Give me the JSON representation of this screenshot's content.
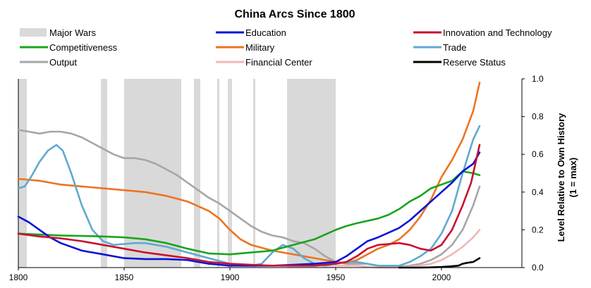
{
  "chart_data": {
    "type": "line",
    "title": "China Arcs Since 1800",
    "ylabel_line1": "Level Relative to Own History",
    "ylabel_line2": "(1 = max)",
    "xlim": [
      1800,
      2038
    ],
    "ylim": [
      0,
      1.0
    ],
    "x_ticks": [
      1800,
      1850,
      1900,
      1950,
      2000
    ],
    "y_ticks": [
      0.0,
      0.2,
      0.4,
      0.6,
      0.8,
      1.0
    ],
    "y_tick_labels": [
      "0.0",
      "0.2",
      "0.4",
      "0.6",
      "0.8",
      "1.0"
    ],
    "legend_placement": "top",
    "major_wars_label": "Major Wars",
    "major_wars_color": "#d9d9d9",
    "major_wars": [
      [
        1800,
        1804
      ],
      [
        1839,
        1842
      ],
      [
        1850,
        1877
      ],
      [
        1883,
        1886
      ],
      [
        1894,
        1895
      ],
      [
        1899,
        1901
      ],
      [
        1911,
        1912
      ],
      [
        1927,
        1950
      ]
    ],
    "series": [
      {
        "name": "Education",
        "color": "#0a14d6",
        "x": [
          1800,
          1805,
          1810,
          1815,
          1820,
          1830,
          1840,
          1850,
          1860,
          1870,
          1880,
          1890,
          1900,
          1910,
          1920,
          1930,
          1940,
          1950,
          1955,
          1960,
          1965,
          1970,
          1975,
          1980,
          1985,
          1990,
          1995,
          2000,
          2005,
          2010,
          2015,
          2018
        ],
        "y": [
          0.27,
          0.24,
          0.2,
          0.16,
          0.13,
          0.09,
          0.07,
          0.05,
          0.045,
          0.045,
          0.04,
          0.02,
          0.01,
          0.01,
          0.01,
          0.015,
          0.02,
          0.03,
          0.06,
          0.1,
          0.14,
          0.16,
          0.185,
          0.21,
          0.25,
          0.3,
          0.35,
          0.4,
          0.45,
          0.51,
          0.55,
          0.61
        ]
      },
      {
        "name": "Innovation and Technology",
        "color": "#c8102e",
        "x": [
          1800,
          1810,
          1820,
          1830,
          1840,
          1850,
          1860,
          1870,
          1880,
          1890,
          1900,
          1910,
          1920,
          1930,
          1940,
          1950,
          1955,
          1960,
          1965,
          1970,
          1975,
          1980,
          1985,
          1990,
          1995,
          2000,
          2005,
          2010,
          2014,
          2018
        ],
        "y": [
          0.18,
          0.165,
          0.155,
          0.14,
          0.12,
          0.1,
          0.08,
          0.065,
          0.05,
          0.03,
          0.02,
          0.015,
          0.01,
          0.01,
          0.01,
          0.02,
          0.03,
          0.06,
          0.1,
          0.12,
          0.125,
          0.13,
          0.12,
          0.1,
          0.09,
          0.12,
          0.2,
          0.33,
          0.45,
          0.65
        ]
      },
      {
        "name": "Competitiveness",
        "color": "#18a51c",
        "x": [
          1800,
          1810,
          1820,
          1830,
          1840,
          1850,
          1860,
          1870,
          1880,
          1890,
          1900,
          1910,
          1920,
          1930,
          1940,
          1950,
          1955,
          1960,
          1970,
          1975,
          1980,
          1985,
          1990,
          1995,
          2000,
          2005,
          2010,
          2015,
          2018
        ],
        "y": [
          0.18,
          0.175,
          0.17,
          0.168,
          0.165,
          0.16,
          0.15,
          0.13,
          0.1,
          0.075,
          0.07,
          0.08,
          0.09,
          0.12,
          0.15,
          0.2,
          0.22,
          0.235,
          0.26,
          0.28,
          0.31,
          0.35,
          0.38,
          0.42,
          0.44,
          0.46,
          0.51,
          0.5,
          0.49
        ]
      },
      {
        "name": "Military",
        "color": "#ec7423",
        "x": [
          1800,
          1810,
          1820,
          1830,
          1840,
          1850,
          1860,
          1870,
          1880,
          1890,
          1895,
          1900,
          1905,
          1910,
          1920,
          1930,
          1940,
          1950,
          1955,
          1960,
          1965,
          1970,
          1975,
          1980,
          1985,
          1990,
          1995,
          2000,
          2005,
          2010,
          2015,
          2018
        ],
        "y": [
          0.47,
          0.46,
          0.44,
          0.43,
          0.42,
          0.41,
          0.4,
          0.38,
          0.35,
          0.3,
          0.26,
          0.2,
          0.15,
          0.12,
          0.09,
          0.07,
          0.05,
          0.03,
          0.025,
          0.04,
          0.07,
          0.1,
          0.12,
          0.15,
          0.2,
          0.27,
          0.36,
          0.48,
          0.57,
          0.68,
          0.83,
          0.98
        ]
      },
      {
        "name": "Trade",
        "color": "#5fa9d0",
        "x": [
          1800,
          1803,
          1806,
          1810,
          1814,
          1818,
          1821,
          1825,
          1830,
          1835,
          1840,
          1845,
          1850,
          1855,
          1860,
          1870,
          1880,
          1890,
          1900,
          1905,
          1910,
          1915,
          1920,
          1925,
          1930,
          1935,
          1940,
          1945,
          1950,
          1955,
          1960,
          1965,
          1970,
          1975,
          1980,
          1985,
          1990,
          1995,
          2000,
          2005,
          2010,
          2015,
          2018
        ],
        "y": [
          0.42,
          0.43,
          0.48,
          0.56,
          0.62,
          0.65,
          0.62,
          0.5,
          0.33,
          0.2,
          0.14,
          0.12,
          0.125,
          0.13,
          0.13,
          0.11,
          0.08,
          0.05,
          0.02,
          0.01,
          0.01,
          0.02,
          0.08,
          0.12,
          0.1,
          0.05,
          0.02,
          0.01,
          0.02,
          0.03,
          0.03,
          0.02,
          0.01,
          0.01,
          0.01,
          0.03,
          0.06,
          0.1,
          0.18,
          0.3,
          0.5,
          0.68,
          0.75
        ]
      },
      {
        "name": "Output",
        "color": "#a6a6a6",
        "x": [
          1800,
          1805,
          1810,
          1815,
          1820,
          1825,
          1830,
          1835,
          1840,
          1845,
          1850,
          1855,
          1860,
          1865,
          1870,
          1875,
          1880,
          1885,
          1890,
          1895,
          1900,
          1905,
          1910,
          1915,
          1920,
          1925,
          1930,
          1935,
          1940,
          1945,
          1950,
          1955,
          1960,
          1965,
          1970,
          1975,
          1980,
          1985,
          1990,
          1995,
          2000,
          2005,
          2010,
          2015,
          2018
        ],
        "y": [
          0.73,
          0.72,
          0.71,
          0.72,
          0.72,
          0.71,
          0.69,
          0.66,
          0.63,
          0.6,
          0.58,
          0.58,
          0.57,
          0.55,
          0.52,
          0.49,
          0.45,
          0.41,
          0.37,
          0.34,
          0.3,
          0.26,
          0.22,
          0.19,
          0.17,
          0.16,
          0.14,
          0.13,
          0.1,
          0.06,
          0.03,
          0.02,
          0.02,
          0.02,
          0.01,
          0.005,
          0.005,
          0.01,
          0.02,
          0.04,
          0.07,
          0.12,
          0.2,
          0.33,
          0.43
        ]
      },
      {
        "name": "Financial Center",
        "color": "#f2b6b6",
        "x": [
          1950,
          1955,
          1960,
          1965,
          1970,
          1975,
          1980,
          1985,
          1990,
          1995,
          2000,
          2005,
          2010,
          2015,
          2018
        ],
        "y": [
          0.01,
          0.01,
          0.01,
          0.005,
          0.0,
          0.0,
          0.0,
          0.005,
          0.01,
          0.02,
          0.04,
          0.07,
          0.11,
          0.16,
          0.2
        ]
      },
      {
        "name": "Reserve Status",
        "color": "#000000",
        "x": [
          1980,
          1985,
          1990,
          1995,
          2000,
          2005,
          2008,
          2010,
          2012,
          2015,
          2018
        ],
        "y": [
          0.0,
          0.0,
          0.0,
          0.001,
          0.003,
          0.007,
          0.01,
          0.02,
          0.025,
          0.03,
          0.05
        ]
      }
    ]
  }
}
